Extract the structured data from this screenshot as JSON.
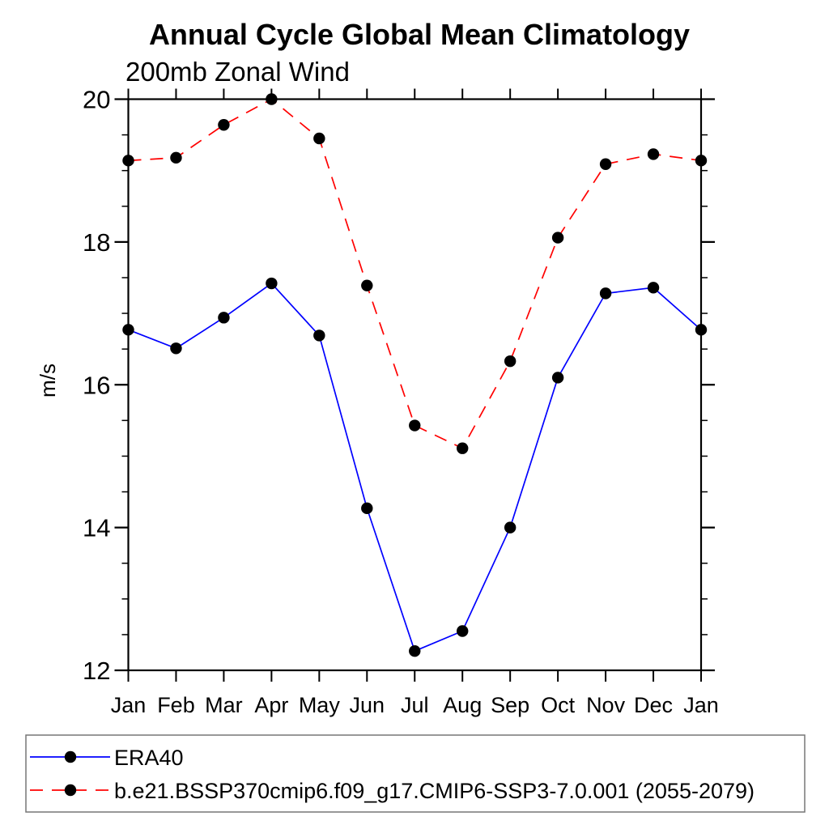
{
  "chart_data": {
    "type": "line",
    "title": "Annual Cycle Global Mean Climatology",
    "subtitle": "200mb Zonal Wind",
    "xlabel": "",
    "ylabel": "m/s",
    "categories": [
      "Jan",
      "Feb",
      "Mar",
      "Apr",
      "May",
      "Jun",
      "Jul",
      "Aug",
      "Sep",
      "Oct",
      "Nov",
      "Dec",
      "Jan"
    ],
    "ylim": [
      12,
      20
    ],
    "y_major_ticks": [
      12,
      14,
      16,
      18,
      20
    ],
    "y_minor_step": 0.5,
    "grid": false,
    "frame": "box-with-outward-ticks",
    "legend_position": "bottom-left-box",
    "series": [
      {
        "name": "ERA40",
        "line_color": "#0000ff",
        "line_style": "solid",
        "marker": "filled-circle",
        "marker_color": "#000000",
        "values": [
          16.77,
          16.51,
          16.94,
          17.42,
          16.69,
          14.27,
          12.27,
          12.55,
          14.0,
          16.1,
          17.28,
          17.36,
          16.77
        ]
      },
      {
        "name": "b.e21.BSSP370cmip6.f09_g17.CMIP6-SSP3-7.0.001 (2055-2079)",
        "line_color": "#ff0000",
        "line_style": "dashed",
        "marker": "filled-circle",
        "marker_color": "#000000",
        "values": [
          19.14,
          19.18,
          19.64,
          20.0,
          19.45,
          17.39,
          15.43,
          15.11,
          16.33,
          18.06,
          19.09,
          19.23,
          19.14
        ]
      }
    ],
    "colors": {
      "axis": "#000000",
      "text": "#000000",
      "legend_border": "#777777",
      "background": "#ffffff"
    }
  }
}
